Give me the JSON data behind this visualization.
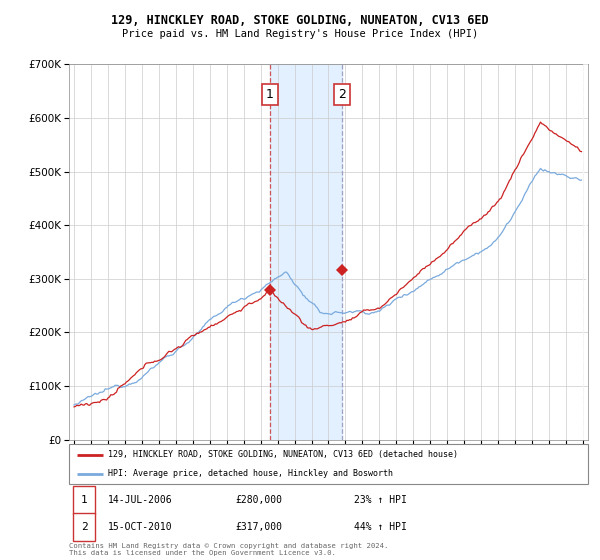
{
  "title": "129, HINCKLEY ROAD, STOKE GOLDING, NUNEATON, CV13 6ED",
  "subtitle": "Price paid vs. HM Land Registry's House Price Index (HPI)",
  "legend_line1": "129, HINCKLEY ROAD, STOKE GOLDING, NUNEATON, CV13 6ED (detached house)",
  "legend_line2": "HPI: Average price, detached house, Hinckley and Bosworth",
  "annotation1_date": "14-JUL-2006",
  "annotation1_price": "£280,000",
  "annotation1_hpi": "23% ↑ HPI",
  "annotation2_date": "15-OCT-2010",
  "annotation2_price": "£317,000",
  "annotation2_hpi": "44% ↑ HPI",
  "footer": "Contains HM Land Registry data © Crown copyright and database right 2024.\nThis data is licensed under the Open Government Licence v3.0.",
  "line_color_red": "#cc2222",
  "line_color_blue": "#7aaadd",
  "shaded_color": "#ddeeff",
  "vline1_color": "#cc4444",
  "vline2_color": "#9999bb",
  "sale1_x": 2006.54,
  "sale1_y": 280000,
  "sale2_x": 2010.79,
  "sale2_y": 317000,
  "ylim": [
    0,
    700000
  ],
  "xlim_start": 1994.7,
  "xlim_end": 2025.3,
  "yticks": [
    0,
    100000,
    200000,
    300000,
    400000,
    500000,
    600000,
    700000
  ],
  "xtick_start": 1995,
  "xtick_end": 2025
}
